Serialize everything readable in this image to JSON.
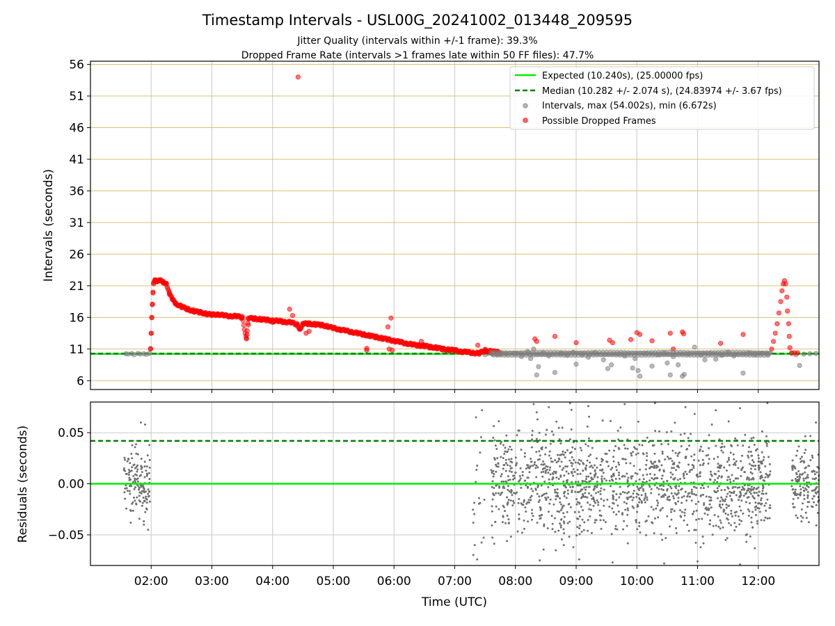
{
  "chart_data": [
    {
      "type": "scatter",
      "title": "Timestamp Intervals - USL00G_20241002_013448_209595",
      "subtitle_lines": [
        "Jitter Quality (intervals within +/-1 frame): 39.3%",
        "Dropped Frame Rate (intervals >1 frames late within 50 FF files): 47.7%"
      ],
      "xlabel": "",
      "ylabel": "Intervals (seconds)",
      "ylim": [
        4.6,
        56.5
      ],
      "yticks": [
        6,
        11,
        16,
        21,
        26,
        31,
        36,
        41,
        46,
        51,
        56
      ],
      "ytick_labels": [
        "6",
        "11",
        "16",
        "21",
        "26",
        "31",
        "36",
        "41",
        "46",
        "51",
        "56"
      ],
      "x_unit": "hours UTC",
      "xlim": [
        1.0,
        13.0
      ],
      "xticks": [
        2,
        3,
        4,
        5,
        6,
        7,
        8,
        9,
        10,
        11,
        12
      ],
      "grid": true,
      "legend_position": "upper-right",
      "legend": [
        {
          "label": "Expected (10.240s), (25.00000 fps)",
          "kind": "solid-line",
          "color": "#00ee00"
        },
        {
          "label": "Median (10.282 +/- 2.074 s), (24.83974 +/- 3.67 fps)",
          "kind": "dashed-line",
          "color": "#008000"
        },
        {
          "label": "Intervals, max (54.002s), min (6.672s)",
          "kind": "dot",
          "color": "#808080"
        },
        {
          "label": "Possible Dropped Frames",
          "kind": "dot",
          "color": "#ff0000"
        }
      ],
      "reference_lines": {
        "expected": 10.24,
        "median": 10.282
      },
      "series": [
        {
          "name": "Intervals, max (54.002s), min (6.672s)",
          "color": "#808080",
          "points": [
            [
              1.58,
              10.25
            ],
            [
              1.62,
              10.2
            ],
            [
              1.68,
              10.28
            ],
            [
              1.72,
              10.1
            ],
            [
              1.78,
              10.3
            ],
            [
              1.82,
              10.2
            ],
            [
              1.88,
              10.25
            ],
            [
              1.92,
              10.15
            ],
            [
              1.97,
              10.3
            ],
            [
              7.5,
              10.1
            ],
            [
              7.55,
              10.3
            ],
            [
              7.62,
              10.2
            ],
            [
              7.7,
              10.1
            ],
            [
              7.85,
              10.2
            ],
            [
              8.0,
              10.3
            ],
            [
              8.1,
              9.8
            ],
            [
              8.2,
              10.6
            ],
            [
              8.25,
              9.5
            ],
            [
              8.3,
              11.0
            ],
            [
              8.35,
              6.9
            ],
            [
              8.38,
              8.2
            ],
            [
              8.45,
              10.4
            ],
            [
              8.55,
              9.9
            ],
            [
              8.65,
              7.3
            ],
            [
              8.75,
              10.3
            ],
            [
              8.85,
              10.0
            ],
            [
              8.95,
              10.5
            ],
            [
              9.0,
              8.6
            ],
            [
              9.1,
              10.1
            ],
            [
              9.2,
              9.7
            ],
            [
              9.3,
              10.4
            ],
            [
              9.45,
              9.3
            ],
            [
              9.52,
              7.9
            ],
            [
              9.58,
              8.5
            ],
            [
              9.7,
              10.2
            ],
            [
              9.8,
              9.9
            ],
            [
              9.93,
              8.0
            ],
            [
              9.97,
              9.5
            ],
            [
              10.02,
              7.6
            ],
            [
              10.05,
              6.7
            ],
            [
              10.15,
              10.3
            ],
            [
              10.25,
              8.3
            ],
            [
              10.35,
              10.1
            ],
            [
              10.45,
              10.4
            ],
            [
              10.5,
              8.8
            ],
            [
              10.55,
              6.9
            ],
            [
              10.6,
              9.8
            ],
            [
              10.68,
              8.5
            ],
            [
              10.75,
              6.7
            ],
            [
              10.78,
              7.0
            ],
            [
              10.85,
              10.2
            ],
            [
              10.95,
              11.3
            ],
            [
              11.05,
              10.1
            ],
            [
              11.12,
              9.3
            ],
            [
              11.2,
              10.3
            ],
            [
              11.3,
              9.4
            ],
            [
              11.4,
              10.0
            ],
            [
              11.5,
              10.5
            ],
            [
              11.6,
              9.9
            ],
            [
              11.75,
              7.2
            ],
            [
              11.85,
              10.4
            ],
            [
              11.95,
              10.1
            ],
            [
              12.05,
              10.3
            ],
            [
              12.15,
              10.2
            ],
            [
              12.55,
              10.3
            ],
            [
              12.62,
              10.1
            ],
            [
              12.68,
              8.4
            ],
            [
              12.75,
              10.2
            ],
            [
              12.85,
              10.25
            ],
            [
              12.95,
              10.3
            ]
          ]
        },
        {
          "name": "Possible Dropped Frames",
          "color": "#ff0000",
          "points": [
            [
              1.99,
              11.0
            ],
            [
              2.0,
              13.5
            ],
            [
              2.01,
              16.0
            ],
            [
              2.02,
              18.0
            ],
            [
              2.03,
              20.0
            ],
            [
              2.04,
              21.3
            ],
            [
              2.06,
              21.8
            ],
            [
              2.1,
              21.7
            ],
            [
              2.15,
              21.8
            ],
            [
              2.2,
              21.6
            ],
            [
              2.25,
              21.4
            ],
            [
              2.3,
              19.8
            ],
            [
              2.35,
              18.8
            ],
            [
              2.4,
              18.2
            ],
            [
              2.5,
              17.7
            ],
            [
              2.6,
              17.3
            ],
            [
              2.7,
              17.0
            ],
            [
              2.8,
              16.8
            ],
            [
              2.9,
              16.6
            ],
            [
              3.0,
              16.4
            ],
            [
              3.1,
              16.5
            ],
            [
              3.2,
              16.3
            ],
            [
              3.3,
              16.2
            ],
            [
              3.4,
              16.2
            ],
            [
              3.5,
              16.0
            ],
            [
              3.6,
              15.9
            ],
            [
              3.7,
              15.8
            ],
            [
              3.8,
              15.7
            ],
            [
              3.9,
              15.6
            ],
            [
              4.0,
              15.5
            ],
            [
              4.1,
              15.4
            ],
            [
              4.2,
              15.3
            ],
            [
              4.3,
              15.2
            ],
            [
              4.4,
              14.9
            ],
            [
              4.45,
              14.2
            ],
            [
              4.5,
              15.0
            ],
            [
              4.6,
              15.0
            ],
            [
              4.7,
              14.9
            ],
            [
              4.8,
              14.8
            ],
            [
              4.9,
              14.6
            ],
            [
              5.0,
              14.3
            ],
            [
              5.1,
              14.1
            ],
            [
              5.2,
              13.9
            ],
            [
              5.3,
              13.7
            ],
            [
              5.4,
              13.5
            ],
            [
              5.5,
              13.3
            ],
            [
              5.6,
              13.1
            ],
            [
              5.7,
              12.9
            ],
            [
              5.8,
              12.7
            ],
            [
              5.9,
              12.5
            ],
            [
              6.0,
              12.3
            ],
            [
              6.1,
              12.1
            ],
            [
              6.2,
              11.9
            ],
            [
              6.3,
              11.7
            ],
            [
              6.4,
              11.6
            ],
            [
              6.5,
              11.5
            ],
            [
              6.6,
              11.3
            ],
            [
              6.7,
              11.2
            ],
            [
              6.8,
              11.0
            ],
            [
              6.9,
              10.9
            ],
            [
              7.0,
              10.8
            ],
            [
              7.1,
              10.6
            ],
            [
              7.2,
              10.5
            ],
            [
              7.3,
              10.4
            ],
            [
              7.4,
              10.3
            ],
            [
              7.5,
              10.8
            ],
            [
              7.6,
              10.6
            ],
            [
              7.7,
              10.5
            ],
            [
              7.75,
              10.4
            ],
            [
              3.57,
              12.6
            ],
            [
              3.58,
              13.3
            ],
            [
              3.6,
              14.8
            ],
            [
              4.0,
              15.2
            ],
            [
              4.15,
              15.5
            ],
            [
              4.28,
              17.3
            ],
            [
              4.33,
              16.3
            ],
            [
              4.42,
              54.0
            ],
            [
              4.55,
              13.5
            ],
            [
              4.6,
              13.8
            ],
            [
              5.55,
              10.8
            ],
            [
              5.55,
              11.1
            ],
            [
              5.92,
              11.0
            ],
            [
              5.95,
              15.9
            ],
            [
              5.97,
              10.8
            ],
            [
              5.9,
              14.5
            ],
            [
              6.45,
              12.2
            ],
            [
              7.38,
              11.6
            ],
            [
              8.32,
              12.6
            ],
            [
              8.35,
              12.2
            ],
            [
              8.65,
              13.0
            ],
            [
              9.0,
              12.0
            ],
            [
              9.55,
              12.4
            ],
            [
              9.6,
              12.0
            ],
            [
              9.9,
              12.5
            ],
            [
              10.0,
              13.6
            ],
            [
              10.05,
              13.3
            ],
            [
              10.25,
              12.3
            ],
            [
              10.55,
              13.5
            ],
            [
              10.6,
              11.0
            ],
            [
              10.75,
              13.7
            ],
            [
              10.77,
              13.4
            ],
            [
              11.38,
              11.9
            ],
            [
              11.75,
              13.3
            ],
            [
              12.22,
              11.0
            ],
            [
              12.25,
              12.2
            ],
            [
              12.28,
              13.5
            ],
            [
              12.31,
              15.0
            ],
            [
              12.34,
              16.7
            ],
            [
              12.37,
              18.5
            ],
            [
              12.39,
              20.2
            ],
            [
              12.41,
              21.3
            ],
            [
              12.43,
              21.8
            ],
            [
              12.45,
              21.3
            ],
            [
              12.47,
              19.2
            ],
            [
              12.48,
              17.0
            ],
            [
              12.5,
              15.0
            ],
            [
              12.51,
              13.0
            ],
            [
              12.52,
              11.2
            ],
            [
              12.55,
              10.4
            ],
            [
              12.6,
              10.4
            ],
            [
              12.65,
              10.4
            ]
          ]
        }
      ]
    },
    {
      "type": "scatter",
      "xlabel": "Time (UTC)",
      "ylabel": "Residuals (seconds)",
      "ylim": [
        -0.08,
        0.08
      ],
      "yticks": [
        -0.05,
        0.0,
        0.05
      ],
      "ytick_labels": [
        "−0.05",
        "0.00",
        "0.05"
      ],
      "xlim": [
        1.0,
        13.0
      ],
      "xticks": [
        2,
        3,
        4,
        5,
        6,
        7,
        8,
        9,
        10,
        11,
        12
      ],
      "xtick_labels": [
        "02:00",
        "03:00",
        "04:00",
        "05:00",
        "06:00",
        "07:00",
        "08:00",
        "09:00",
        "10:00",
        "11:00",
        "12:00"
      ],
      "grid": true,
      "reference_lines": {
        "zero": 0.0,
        "dashed": 0.042
      },
      "series": [
        {
          "name": "",
          "color": "#707070",
          "clusters": [
            {
              "x_range": [
                1.55,
                1.98
              ],
              "y_spread": 0.03,
              "count": 140
            },
            {
              "x_range": [
                7.3,
                7.5
              ],
              "y_spread": 0.06,
              "count": 16
            },
            {
              "x_range": [
                7.6,
                12.2
              ],
              "y_spread": 0.045,
              "count": 1400
            },
            {
              "x_range": [
                12.55,
                13.0
              ],
              "y_spread": 0.03,
              "count": 150
            }
          ],
          "outliers": [
            [
              1.83,
              0.06
            ],
            [
              1.9,
              0.058
            ],
            [
              1.95,
              -0.045
            ],
            [
              1.88,
              -0.04
            ],
            [
              7.35,
              0.065
            ],
            [
              7.45,
              0.072
            ],
            [
              7.33,
              -0.06
            ],
            [
              7.37,
              -0.074
            ],
            [
              8.3,
              0.078
            ],
            [
              8.35,
              0.07
            ],
            [
              8.55,
              0.075
            ],
            [
              8.9,
              0.079
            ],
            [
              9.2,
              0.076
            ],
            [
              9.8,
              0.078
            ],
            [
              10.3,
              0.079
            ],
            [
              10.8,
              0.075
            ],
            [
              11.3,
              0.072
            ],
            [
              11.7,
              0.074
            ],
            [
              12.15,
              0.079
            ],
            [
              8.4,
              -0.075
            ],
            [
              9.05,
              -0.074
            ],
            [
              9.6,
              -0.077
            ],
            [
              10.45,
              -0.078
            ],
            [
              11.0,
              -0.076
            ],
            [
              11.7,
              -0.079
            ],
            [
              12.95,
              0.06
            ]
          ]
        }
      ]
    }
  ]
}
